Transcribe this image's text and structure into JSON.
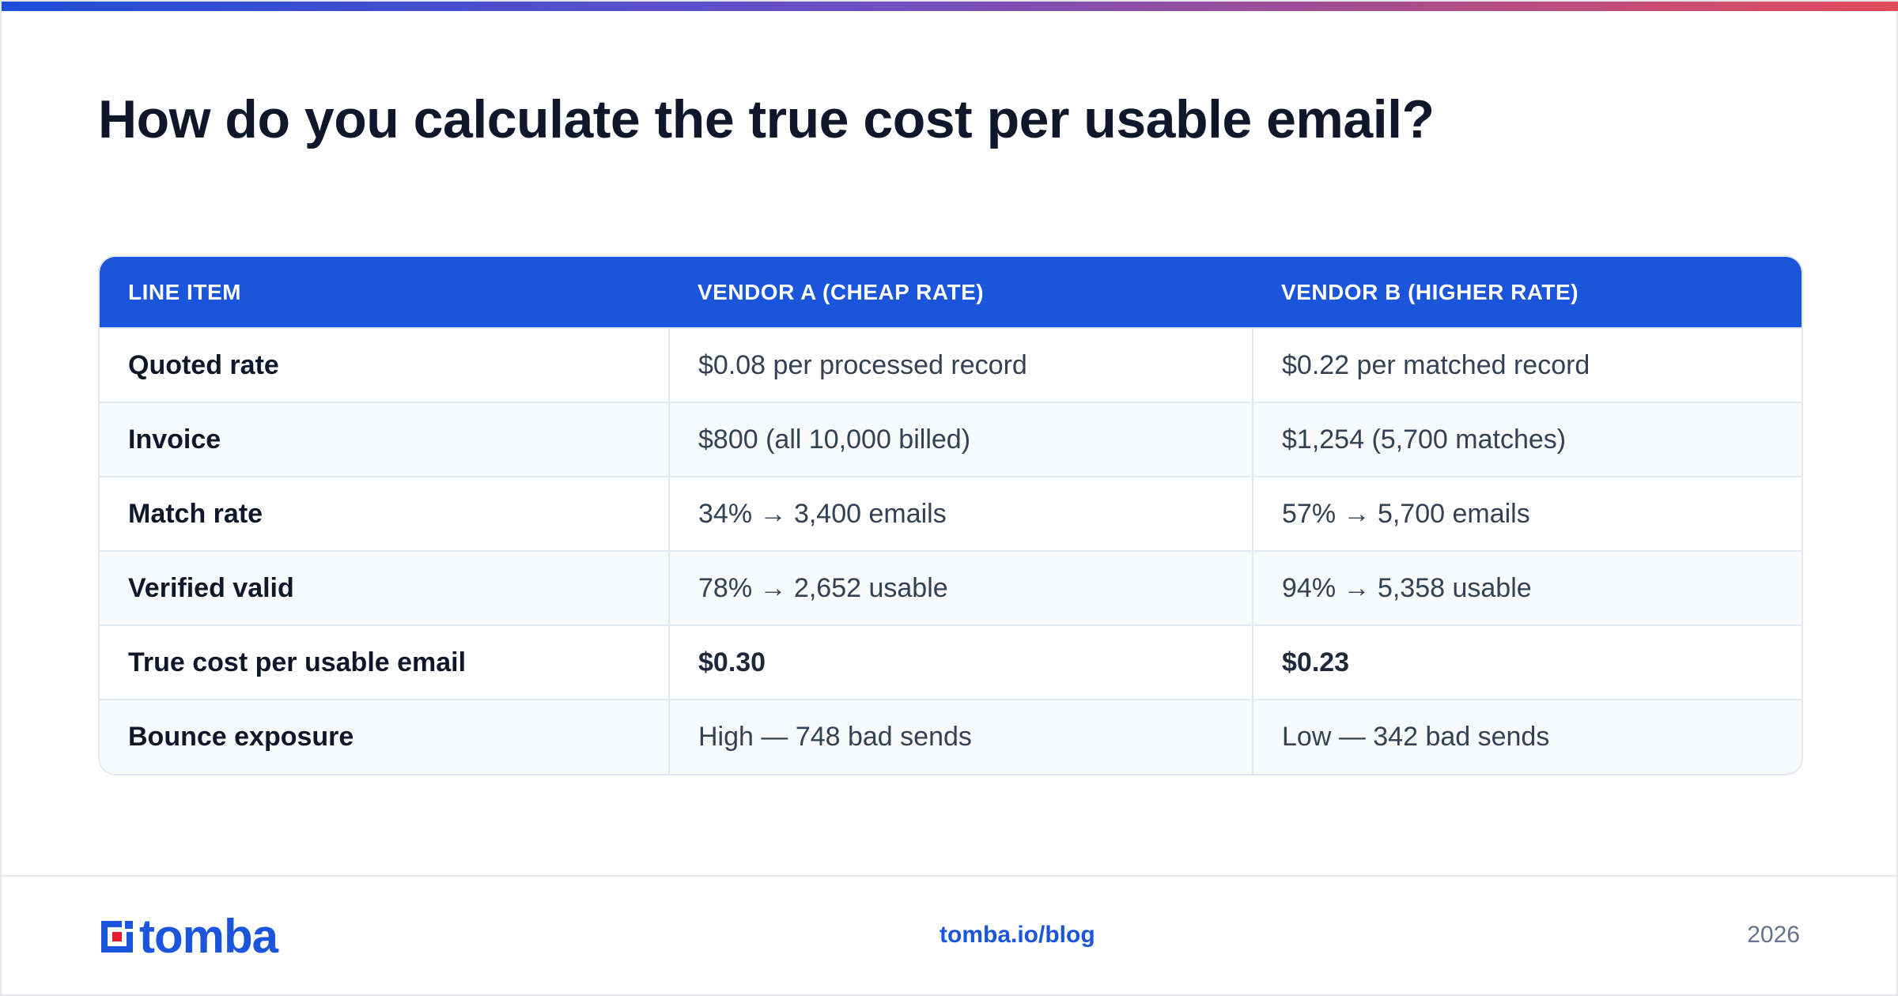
{
  "title": "How do you calculate the true cost per usable email?",
  "table": {
    "headers": [
      "LINE ITEM",
      "VENDOR A (CHEAP RATE)",
      "VENDOR B (HIGHER RATE)"
    ],
    "rows": [
      {
        "label": "Quoted rate",
        "a": "$0.08 per processed record",
        "b": "$0.22 per matched record",
        "emphasis": false
      },
      {
        "label": "Invoice",
        "a": "$800 (all 10,000 billed)",
        "b": "$1,254 (5,700 matches)",
        "emphasis": false
      },
      {
        "label": "Match rate",
        "a": "34% → 3,400 emails",
        "b": "57% → 5,700 emails",
        "emphasis": false
      },
      {
        "label": "Verified valid",
        "a": "78% → 2,652 usable",
        "b": "94% → 5,358 usable",
        "emphasis": false
      },
      {
        "label": "True cost per usable email",
        "a": "$0.30",
        "b": "$0.23",
        "emphasis": true
      },
      {
        "label": "Bounce exposure",
        "a": "High — 748 bad sends",
        "b": "Low — 342 bad sends",
        "emphasis": false
      }
    ]
  },
  "footer": {
    "logo_text": "tomba",
    "link": "tomba.io/blog",
    "year": "2026"
  },
  "colors": {
    "accent": "#1b55dc",
    "logo_red": "#e11d2e",
    "title": "#0f172a"
  },
  "icons": {
    "logo_mark": "tomba-logo-icon"
  }
}
